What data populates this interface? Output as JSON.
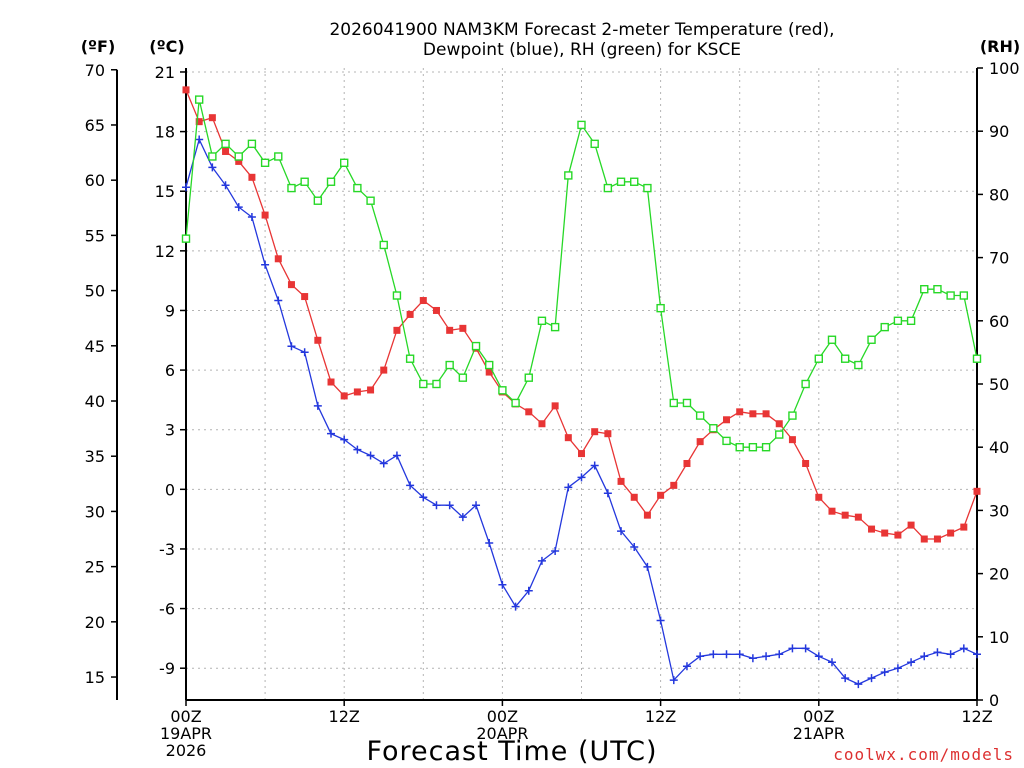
{
  "chart_data": {
    "type": "line",
    "title_line1": "2026041900 NAM3KM Forecast 2-meter Temperature (red),",
    "title_line2": "Dewpoint (blue), RH (green) for KSCE",
    "xlabel": "Forecast Time (UTC)",
    "credit": "coolwx.com/models",
    "units": {
      "f": "(ºF)",
      "c": "(ºC)",
      "rh": "(RH)"
    },
    "hours": [
      0,
      1,
      2,
      3,
      4,
      5,
      6,
      7,
      8,
      9,
      10,
      11,
      12,
      13,
      14,
      15,
      16,
      17,
      18,
      19,
      20,
      21,
      22,
      23,
      24,
      25,
      26,
      27,
      28,
      29,
      30,
      31,
      32,
      33,
      34,
      35,
      36,
      37,
      38,
      39,
      40,
      41,
      42,
      43,
      44,
      45,
      46,
      47,
      48,
      49,
      50,
      51,
      52,
      53,
      54,
      55,
      56,
      57,
      58,
      59,
      60
    ],
    "x_range": [
      0,
      60
    ],
    "x_ticks": [
      {
        "hour": 0,
        "lines": [
          "00Z",
          "19APR",
          "2026"
        ]
      },
      {
        "hour": 12,
        "lines": [
          "12Z"
        ]
      },
      {
        "hour": 24,
        "lines": [
          "00Z",
          "20APR"
        ]
      },
      {
        "hour": 36,
        "lines": [
          "12Z"
        ]
      },
      {
        "hour": 48,
        "lines": [
          "00Z",
          "21APR"
        ]
      },
      {
        "hour": 60,
        "lines": [
          "12Z"
        ]
      }
    ],
    "celsius_axis": {
      "min": -10.6,
      "max": 21.2,
      "ticks": [
        21,
        18,
        15,
        12,
        9,
        6,
        3,
        0,
        -3,
        -6,
        -9
      ]
    },
    "fahrenheit_ticks": [
      70,
      65,
      60,
      55,
      50,
      45,
      40,
      35,
      30,
      25,
      20,
      15
    ],
    "rh_axis": {
      "min": 0,
      "max": 100,
      "ticks": [
        100,
        90,
        80,
        70,
        60,
        50,
        40,
        30,
        20,
        10,
        0
      ]
    },
    "series": [
      {
        "name": "2-meter Temperature",
        "axis": "celsius",
        "color": "#e83535",
        "marker": "filled-square",
        "values": [
          20.1,
          18.5,
          18.7,
          17.0,
          16.5,
          15.7,
          13.8,
          11.6,
          10.3,
          9.7,
          7.5,
          5.4,
          4.7,
          4.9,
          5.0,
          6.0,
          8.0,
          8.8,
          9.5,
          9.0,
          8.0,
          8.1,
          7.1,
          5.9,
          4.9,
          4.3,
          3.9,
          3.3,
          4.2,
          2.6,
          1.8,
          2.9,
          2.8,
          0.4,
          -0.4,
          -1.3,
          -0.3,
          0.2,
          1.3,
          2.4,
          3.0,
          3.5,
          3.9,
          3.8,
          3.8,
          3.3,
          2.5,
          1.3,
          -0.4,
          -1.1,
          -1.3,
          -1.4,
          -2.0,
          -2.2,
          -2.3,
          -1.8,
          -2.5,
          -2.5,
          -2.2,
          -1.9,
          -0.1
        ]
      },
      {
        "name": "Dewpoint",
        "axis": "celsius",
        "color": "#2438dd",
        "marker": "plus",
        "values": [
          15.2,
          17.6,
          16.2,
          15.3,
          14.2,
          13.7,
          11.3,
          9.5,
          7.2,
          6.9,
          4.2,
          2.8,
          2.5,
          2.0,
          1.7,
          1.3,
          1.7,
          0.2,
          -0.4,
          -0.8,
          -0.8,
          -1.4,
          -0.8,
          -2.7,
          -4.8,
          -5.9,
          -5.1,
          -3.6,
          -3.1,
          0.1,
          0.6,
          1.2,
          -0.2,
          -2.1,
          -2.9,
          -3.9,
          -6.6,
          -9.6,
          -8.9,
          -8.4,
          -8.3,
          -8.3,
          -8.3,
          -8.5,
          -8.4,
          -8.3,
          -8.0,
          -8.0,
          -8.4,
          -8.7,
          -9.5,
          -9.8,
          -9.5,
          -9.2,
          -9.0,
          -8.7,
          -8.4,
          -8.2,
          -8.3,
          -8.0,
          -8.3
        ]
      },
      {
        "name": "RH",
        "axis": "rh",
        "color": "#27d827",
        "marker": "open-square",
        "values": [
          73,
          95,
          86,
          88,
          86,
          88,
          85,
          86,
          81,
          82,
          79,
          82,
          85,
          81,
          79,
          72,
          64,
          54,
          50,
          50,
          53,
          51,
          56,
          53,
          49,
          47,
          51,
          60,
          59,
          83,
          91,
          88,
          81,
          82,
          82,
          81,
          62,
          47,
          47,
          45,
          43,
          41,
          40,
          40,
          40,
          42,
          45,
          50,
          54,
          57,
          54,
          53,
          57,
          59,
          60,
          60,
          65,
          65,
          64,
          64,
          54
        ]
      }
    ]
  }
}
